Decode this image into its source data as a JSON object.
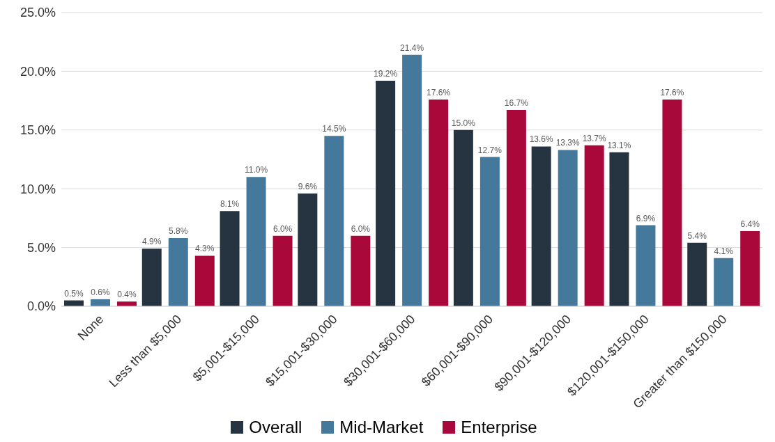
{
  "chart_data": {
    "type": "bar",
    "categories": [
      "None",
      "Less than $5,000",
      "$5,001-$15,000",
      "$15,001-$30,000",
      "$30,001-$60,000",
      "$60,001-$90,000",
      "$90,001-$120,000",
      "$120,001-$150,000",
      "Greater than $150,000"
    ],
    "series": [
      {
        "name": "Overall",
        "color": "#263340",
        "values": [
          0.5,
          4.9,
          8.1,
          9.6,
          19.2,
          15.0,
          13.6,
          13.1,
          5.4
        ],
        "value_labels": [
          "0.5%",
          "4.9%",
          "8.1%",
          "9.6%",
          "19.2%",
          "15.0%",
          "13.6%",
          "13.1%",
          "5.4%"
        ]
      },
      {
        "name": "Mid-Market",
        "color": "#44799b",
        "values": [
          0.6,
          5.8,
          11.0,
          14.5,
          21.4,
          12.7,
          13.3,
          6.9,
          4.1
        ],
        "value_labels": [
          "0.6%",
          "5.8%",
          "11.0%",
          "14.5%",
          "21.4%",
          "12.7%",
          "13.3%",
          "6.9%",
          "4.1%"
        ]
      },
      {
        "name": "Enterprise",
        "color": "#a8083a",
        "values": [
          0.4,
          4.3,
          6.0,
          6.0,
          17.6,
          16.7,
          13.7,
          17.6,
          6.4
        ],
        "value_labels": [
          "0.4%",
          "4.3%",
          "6.0%",
          "6.0%",
          "17.6%",
          "16.7%",
          "13.7%",
          "17.6%",
          "6.4%"
        ]
      }
    ],
    "ylim": [
      0,
      25
    ],
    "yticks": [
      {
        "value": 0,
        "label": "0.0%"
      },
      {
        "value": 5,
        "label": "5.0%"
      },
      {
        "value": 10,
        "label": "10.0%"
      },
      {
        "value": 15,
        "label": "15.0%"
      },
      {
        "value": 20,
        "label": "20.0%"
      },
      {
        "value": 25,
        "label": "25.0%"
      }
    ],
    "grid": "y",
    "legend": "bottom"
  }
}
